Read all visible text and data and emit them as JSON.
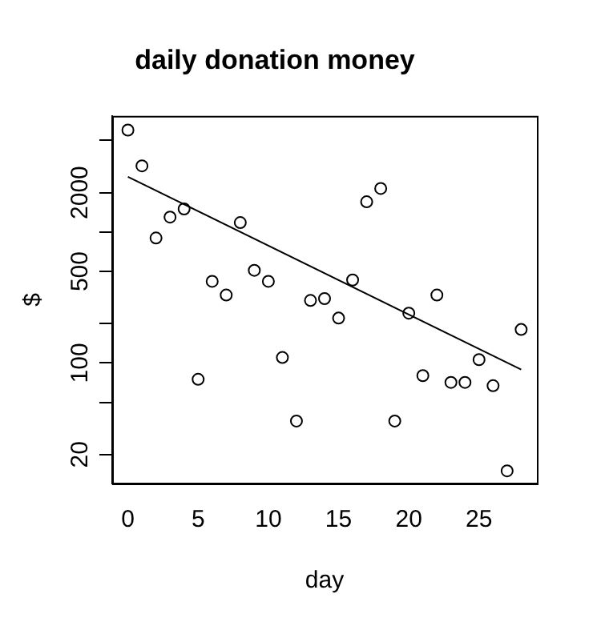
{
  "chart_data": {
    "type": "scatter",
    "title": "daily donation money",
    "xlabel": "day",
    "ylabel": "$",
    "log": "y",
    "grid": false,
    "legend": false,
    "marker": "circle",
    "xlim": [
      -1.12,
      29.12
    ],
    "xticks": [
      0,
      5,
      10,
      15,
      20,
      25
    ],
    "ylim": [
      12,
      7700
    ],
    "yticks": [
      {
        "value": 5000,
        "label": null
      },
      2000,
      {
        "value": 1000,
        "label": null
      },
      500,
      {
        "value": 200,
        "label": null
      },
      100,
      {
        "value": 50,
        "label": null
      },
      20
    ],
    "series": [
      {
        "type": "scatter",
        "color": "#000000",
        "x": [
          0,
          1,
          2,
          3,
          4,
          5,
          6,
          7,
          8,
          9,
          10,
          11,
          12,
          13,
          14,
          15,
          16,
          17,
          18,
          19,
          20,
          21,
          22,
          23,
          24,
          25,
          26,
          27,
          28
        ],
        "values": [
          6000,
          3200,
          900,
          1300,
          1500,
          75,
          420,
          330,
          1180,
          510,
          420,
          110,
          36,
          300,
          310,
          220,
          430,
          1700,
          2150,
          36,
          240,
          80,
          330,
          71,
          71,
          106,
          67,
          15,
          180
        ]
      },
      {
        "type": "line",
        "color": "#000000",
        "x": [
          0,
          28
        ],
        "values": [
          2640,
          89
        ],
        "marker": "none",
        "line_style": "solid"
      }
    ]
  }
}
